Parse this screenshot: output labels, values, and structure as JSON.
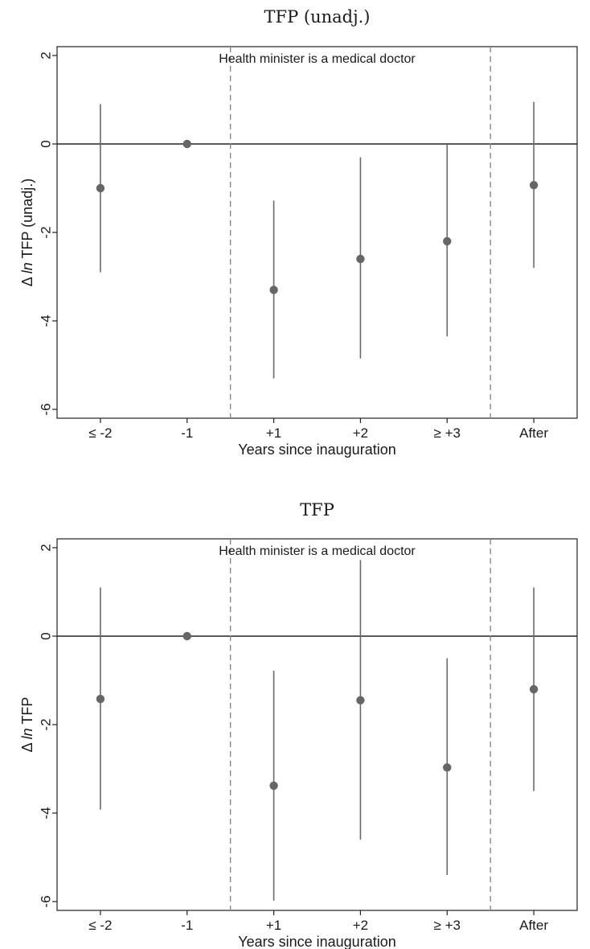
{
  "chart_data": [
    {
      "type": "scatter",
      "title": "TFP (unadj.)",
      "xlabel": "Years since inauguration",
      "ylabel_prefix": "Δ ",
      "ylabel_italic": "ln",
      "ylabel_suffix": " TFP (unadj.)",
      "categories": [
        "≤ -2",
        "-1",
        "+1",
        "+2",
        "≥ +3",
        "After"
      ],
      "ylim": [
        -6.2,
        2.2
      ],
      "yticks": [
        2,
        0,
        -2,
        -4,
        -6
      ],
      "ytick_labels": [
        "2",
        "0",
        "-2",
        "-4",
        "-6"
      ],
      "annotation": "Health minister is a medical doctor",
      "series": [
        {
          "estimate": [
            -1.0,
            0.0,
            -3.3,
            -2.6,
            -2.2,
            -0.93
          ],
          "ci_low": [
            -2.9,
            0.0,
            -5.3,
            -4.85,
            -4.35,
            -2.8
          ],
          "ci_high": [
            0.9,
            0.0,
            -1.28,
            -0.3,
            0.0,
            0.95
          ]
        }
      ]
    },
    {
      "type": "scatter",
      "title": "TFP",
      "xlabel": "Years since inauguration",
      "ylabel_prefix": "Δ ",
      "ylabel_italic": "ln",
      "ylabel_suffix": " TFP",
      "categories": [
        "≤ -2",
        "-1",
        "+1",
        "+2",
        "≥ +3",
        "After"
      ],
      "ylim": [
        -6.2,
        2.2
      ],
      "yticks": [
        2,
        0,
        -2,
        -4,
        -6
      ],
      "ytick_labels": [
        "2",
        "0",
        "-2",
        "-4",
        "-6"
      ],
      "annotation": "Health minister is a medical doctor",
      "series": [
        {
          "estimate": [
            -1.42,
            0.0,
            -3.38,
            -1.45,
            -2.97,
            -1.2
          ],
          "ci_low": [
            -3.92,
            0.0,
            -5.98,
            -4.6,
            -5.4,
            -3.5
          ],
          "ci_high": [
            1.1,
            0.0,
            -0.78,
            1.72,
            -0.5,
            1.1
          ]
        }
      ]
    }
  ]
}
